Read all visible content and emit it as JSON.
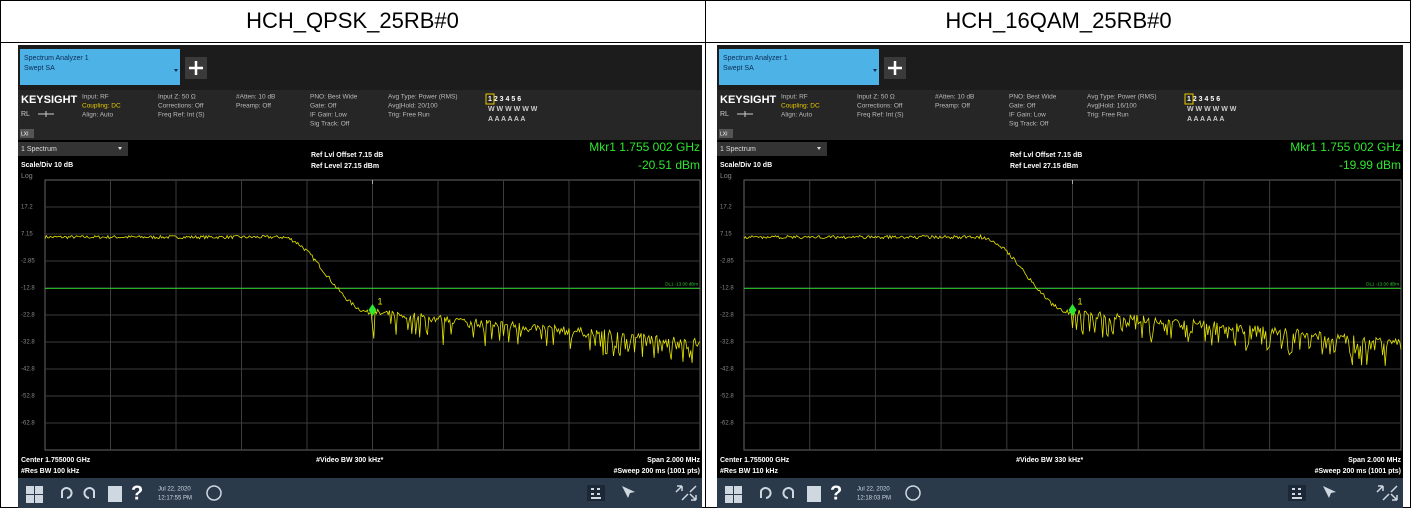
{
  "table": {
    "header": [
      "HCH_QPSK_25RB#0",
      "HCH_16QAM_25RB#0"
    ],
    "panels": [
      {
        "tab": {
          "name": "Spectrum Analyzer 1",
          "mode": "Swept SA"
        },
        "brand": "KEYSIGHT",
        "rl": "RL",
        "lxi": "LXI",
        "settings": [
          [
            "Input: RF",
            "Coupling: DC",
            "Align: Auto"
          ],
          [
            "Input Z: 50 Ω",
            "Corrections: Off",
            "Freq Ref: Int (S)"
          ],
          [
            "#Atten: 10 dB",
            "Preamp: Off"
          ],
          [
            "PNO: Best Wide",
            "Gate: Off",
            "IF Gain: Low",
            "Sig Track: Off"
          ],
          [
            "Avg Type: Power (RMS)",
            "Avg|Hold: 20/100",
            "Trig: Free Run"
          ]
        ],
        "trace_rows": [
          "1 2 3 4 5 6",
          "W W W W W W",
          "A A A A A A"
        ],
        "window": "1 Spectrum",
        "scale": "Scale/Div 10 dB",
        "scale_type": "Log",
        "ref_offset": "Ref Lvl Offset 7.15 dB",
        "ref_level": "Ref Level 27.15 dBm",
        "marker_freq": "Mkr1 1.755 002 GHz",
        "marker_level": "-20.51 dBm",
        "y_labels": [
          "17.2",
          "7.15",
          "-2.85",
          "-12.8",
          "-22.8",
          "-32.8",
          "-42.8",
          "-52.8",
          "-62.8"
        ],
        "display_line": "DL1 -13.00 dBm",
        "marker_label": "1",
        "center": "Center 1.755000 GHz",
        "rbw": "#Res BW 100 kHz",
        "vbw": "#Video BW 300 kHz*",
        "span": "Span 2.000 MHz",
        "sweep": "#Sweep 200 ms (1001 pts)",
        "help": "?",
        "date": "Jul 22, 2020",
        "time": "12:17:55 PM"
      },
      {
        "tab": {
          "name": "Spectrum Analyzer 1",
          "mode": "Swept SA"
        },
        "brand": "KEYSIGHT",
        "rl": "RL",
        "lxi": "LXI",
        "settings": [
          [
            "Input: RF",
            "Coupling: DC",
            "Align: Auto"
          ],
          [
            "Input Z: 50 Ω",
            "Corrections: Off",
            "Freq Ref: Int (S)"
          ],
          [
            "#Atten: 10 dB",
            "Preamp: Off"
          ],
          [
            "PNO: Best Wide",
            "Gate: Off",
            "IF Gain: Low",
            "Sig Track: Off"
          ],
          [
            "Avg Type: Power (RMS)",
            "Avg|Hold: 16/100",
            "Trig: Free Run"
          ]
        ],
        "trace_rows": [
          "1 2 3 4 5 6",
          "W W W W W W",
          "A A A A A A"
        ],
        "window": "1 Spectrum",
        "scale": "Scale/Div 10 dB",
        "scale_type": "Log",
        "ref_offset": "Ref Lvl Offset 7.15 dB",
        "ref_level": "Ref Level 27.15 dBm",
        "marker_freq": "Mkr1 1.755 002 GHz",
        "marker_level": "-19.99 dBm",
        "y_labels": [
          "17.2",
          "7.15",
          "-2.85",
          "-12.8",
          "-22.8",
          "-32.8",
          "-42.8",
          "-52.8",
          "-62.8"
        ],
        "display_line": "DL1 -13.00 dBm",
        "marker_label": "1",
        "center": "Center 1.755000 GHz",
        "rbw": "#Res BW 110 kHz",
        "vbw": "#Video BW 330 kHz*",
        "span": "Span 2.000 MHz",
        "sweep": "#Sweep 200 ms (1001 pts)",
        "help": "?",
        "date": "Jul 22, 2020",
        "time": "12:18:03 PM"
      }
    ]
  }
}
